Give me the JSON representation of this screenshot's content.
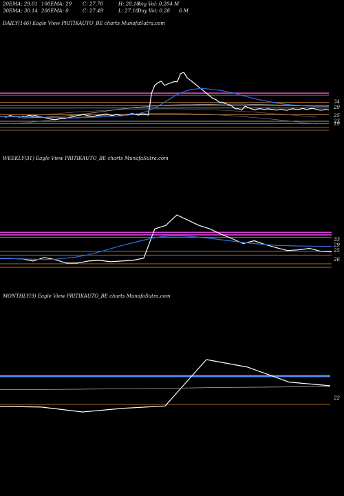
{
  "header": {
    "row1": [
      "20EMA: 29.01",
      "100EMA: 29",
      "C: 27.70",
      "H: 28.10",
      "Avg Vol: 0.204 M"
    ],
    "row2": [
      "30EMA: 30.14",
      "200EMA: 0",
      "C: 27.49",
      "L: 27.10",
      "Day Vol: 0.28",
      "6  M"
    ]
  },
  "colors": {
    "background": "#000000",
    "price": "#ffffff",
    "ema_blue": "#2f6fe0",
    "magenta": "#e040e0",
    "level_orange": "#b8702a",
    "grey": "#9a9a9a",
    "level_blue": "#4c8df0"
  },
  "chart_data": [
    {
      "type": "line",
      "title": "DAILY(146) Eagle  View  PRITIKAUTO_BE charts MunafaSutra.com",
      "ylabels": [
        "34",
        "29",
        "25",
        "23",
        "19"
      ],
      "series": [
        {
          "name": "",
          "values": [
            25,
            25,
            24.8,
            25.4,
            25.2,
            25,
            24.8,
            25.2,
            25,
            25.6,
            25.2,
            25.4,
            25,
            24.8,
            24.6,
            24.2,
            24,
            23.8,
            24,
            24.4,
            24.2,
            24.6,
            24.8,
            25,
            25.4,
            25.6,
            25.8,
            25.4,
            25.2,
            25,
            25.4,
            25.6,
            25.8,
            26,
            25.6,
            25.4,
            25.8,
            25.6,
            25.4,
            25.5,
            25.8,
            26.2,
            25.8,
            25.6,
            26,
            25.8,
            25.6,
            34,
            37,
            38,
            38.6,
            37,
            37.5,
            38,
            38.4,
            38.4,
            41.5,
            42,
            40,
            39,
            38,
            37,
            36,
            35,
            34,
            33,
            32,
            31.5,
            30.5,
            30.5,
            30,
            29.5,
            29,
            28,
            28,
            27.5,
            29,
            28.5,
            28,
            27.5,
            28,
            28,
            27.6,
            28,
            27.8,
            27.6,
            27.5,
            27.8,
            27.6,
            27.4,
            27.8,
            28,
            27.6,
            27.8,
            28.2,
            27.6,
            28,
            28.2,
            27.8,
            27.5,
            27.5,
            27.7,
            27.49
          ]
        },
        {
          "name": "",
          "values": [
            25,
            25,
            25,
            25,
            24.9,
            24.9,
            24.8,
            24.7,
            24.6,
            24.6,
            24.6,
            24.5,
            24.5,
            24.6,
            24.7,
            24.8,
            24.9,
            25,
            25.1,
            25.3,
            25.5,
            25.8,
            26.2,
            26.8,
            27.8,
            29,
            30.5,
            32,
            33.5,
            34.5,
            35.3,
            35.6,
            35.8,
            35.6,
            35.3,
            35,
            34.5,
            34,
            33.3,
            32.7,
            32,
            31.5,
            31,
            30.5,
            30.1,
            29.8,
            29.5,
            29.3,
            29.1,
            29.05,
            29,
            29,
            29.01
          ]
        },
        {
          "name": "",
          "values": [
            24.5,
            24.5,
            24.6,
            24.7,
            24.9,
            25.1,
            25.3,
            25.6,
            25.9,
            26.3,
            26.7,
            27.1,
            27.5,
            27.9,
            28.2,
            28.5,
            28.8,
            29,
            29.2,
            29.4,
            29.5,
            29.6,
            29.6,
            29.7,
            29.7,
            29.7,
            29.8,
            29.8,
            29.8,
            29.8,
            29.7,
            29.7,
            29.6,
            29.5,
            29.4,
            29.3,
            29.2,
            29.1,
            29.05,
            29,
            29
          ]
        }
      ],
      "levels": [
        {
          "value": 34,
          "color": "magenta"
        },
        {
          "value": 33.2,
          "color": "level_orange"
        },
        {
          "value": 30.5,
          "color": "level_orange"
        },
        {
          "value": 29.2,
          "color": "level_orange"
        },
        {
          "value": 28.3,
          "color": "grey"
        },
        {
          "value": 25.7,
          "color": "level_orange"
        },
        {
          "value": 23.2,
          "color": "grey"
        },
        {
          "value": 22.3,
          "color": "level_orange"
        },
        {
          "value": 20.8,
          "color": "level_orange"
        },
        {
          "value": 19.8,
          "color": "level_orange"
        }
      ]
    },
    {
      "type": "line",
      "title": "WEEKLY(31) Eagle  View  PRITIKAUTO_BE charts MunafaSutra.com",
      "ylabels": [
        "33",
        "29",
        "25",
        "26"
      ],
      "series": [
        {
          "name": "",
          "values": [
            25.5,
            25.5,
            25.4,
            24.8,
            25.8,
            25.2,
            24.2,
            24.2,
            24.8,
            25,
            24.6,
            24.8,
            25,
            25.6,
            34,
            35,
            38,
            36.5,
            35,
            34,
            32.5,
            31.2,
            29.8,
            30.6,
            29.5,
            28.6,
            27.8,
            28,
            28.4,
            27.6,
            27.4
          ]
        },
        {
          "name": "",
          "values": [
            25.5,
            25.5,
            25.4,
            25.3,
            25.2,
            25.3,
            25.6,
            26,
            26.6,
            27.4,
            28.3,
            29.2,
            30,
            30.8,
            31.5,
            31.9,
            32,
            31.9,
            31.6,
            31.3,
            30.9,
            30.5,
            30.1,
            29.8,
            29.5,
            29.3,
            29.2,
            29.1,
            29.05,
            29,
            29.01
          ]
        }
      ],
      "levels": [
        {
          "value": 33,
          "color": "magenta"
        },
        {
          "value": 32.3,
          "color": "magenta"
        },
        {
          "value": 31.6,
          "color": "level_orange"
        },
        {
          "value": 27.6,
          "color": "grey"
        },
        {
          "value": 26.5,
          "color": "level_orange"
        },
        {
          "value": 24,
          "color": "level_orange"
        },
        {
          "value": 23,
          "color": "level_orange"
        }
      ]
    },
    {
      "type": "line",
      "title": "MONTHLY(9) Eagle  View  PRITIKAUTO_BE charts MunafaSutra.com",
      "ylabels": [
        "22"
      ],
      "series": [
        {
          "name": "",
          "values": [
            21.5,
            21.3,
            20,
            21,
            21.6,
            34,
            32,
            28,
            27
          ]
        },
        {
          "name": "",
          "values": [
            26,
            26,
            26.1,
            26.2,
            26.3,
            26.5,
            26.6,
            26.7,
            26.8
          ]
        }
      ],
      "levels": [
        {
          "value": 29.6,
          "color": "level_blue"
        },
        {
          "value": 22,
          "color": "level_orange"
        }
      ]
    }
  ]
}
